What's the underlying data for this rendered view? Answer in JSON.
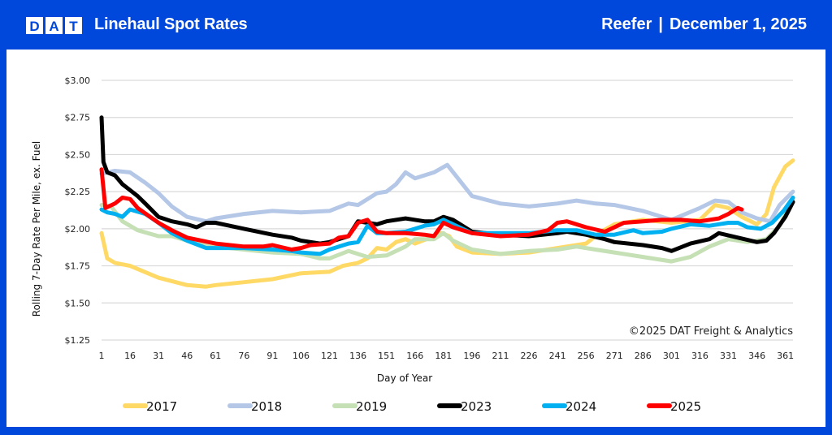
{
  "header": {
    "logo_letters": [
      "D",
      "A",
      "T"
    ],
    "title": "Linehaul Spot Rates",
    "equipment": "Reefer",
    "separator": "|",
    "date": "December 1, 2025"
  },
  "chart_data": {
    "type": "line",
    "title": "Linehaul Spot Rates — Reefer",
    "xlabel": "Day of Year",
    "ylabel": "Rolling 7-Day Rate Per Mile, ex. Fuel",
    "xlim": [
      1,
      365
    ],
    "ylim": [
      1.25,
      3.0
    ],
    "x_ticks": [
      1,
      16,
      31,
      46,
      61,
      76,
      91,
      106,
      121,
      136,
      151,
      166,
      181,
      196,
      211,
      226,
      241,
      256,
      271,
      286,
      301,
      316,
      331,
      346,
      361
    ],
    "y_ticks": [
      1.25,
      1.5,
      1.75,
      2.0,
      2.25,
      2.5,
      2.75,
      3.0
    ],
    "y_tick_labels": [
      "$1.25",
      "$1.50",
      "$1.75",
      "$2.00",
      "$2.25",
      "$2.50",
      "$2.75",
      "$3.00"
    ],
    "grid": "horizontal",
    "legend": "bottom",
    "annotation": "©2025 DAT Freight & Analytics",
    "series": [
      {
        "name": "2017",
        "color": "#ffd966",
        "points": [
          [
            1,
            1.97
          ],
          [
            4,
            1.8
          ],
          [
            8,
            1.77
          ],
          [
            16,
            1.75
          ],
          [
            31,
            1.67
          ],
          [
            46,
            1.62
          ],
          [
            56,
            1.61
          ],
          [
            61,
            1.62
          ],
          [
            76,
            1.64
          ],
          [
            91,
            1.66
          ],
          [
            106,
            1.7
          ],
          [
            121,
            1.71
          ],
          [
            128,
            1.75
          ],
          [
            136,
            1.77
          ],
          [
            141,
            1.8
          ],
          [
            146,
            1.87
          ],
          [
            151,
            1.86
          ],
          [
            156,
            1.91
          ],
          [
            161,
            1.93
          ],
          [
            166,
            1.9
          ],
          [
            172,
            1.93
          ],
          [
            180,
            1.97
          ],
          [
            184,
            1.95
          ],
          [
            188,
            1.88
          ],
          [
            196,
            1.84
          ],
          [
            211,
            1.83
          ],
          [
            226,
            1.84
          ],
          [
            241,
            1.87
          ],
          [
            251,
            1.89
          ],
          [
            256,
            1.9
          ],
          [
            264,
            1.98
          ],
          [
            271,
            2.03
          ],
          [
            286,
            2.06
          ],
          [
            301,
            2.04
          ],
          [
            316,
            2.06
          ],
          [
            324,
            2.16
          ],
          [
            331,
            2.14
          ],
          [
            338,
            2.08
          ],
          [
            346,
            2.03
          ],
          [
            351,
            2.1
          ],
          [
            355,
            2.28
          ],
          [
            361,
            2.42
          ],
          [
            365,
            2.46
          ]
        ]
      },
      {
        "name": "2018",
        "color": "#b4c7e7",
        "points": [
          [
            1,
            2.37
          ],
          [
            8,
            2.39
          ],
          [
            16,
            2.38
          ],
          [
            24,
            2.31
          ],
          [
            31,
            2.24
          ],
          [
            38,
            2.15
          ],
          [
            46,
            2.08
          ],
          [
            56,
            2.05
          ],
          [
            61,
            2.07
          ],
          [
            76,
            2.1
          ],
          [
            91,
            2.12
          ],
          [
            106,
            2.11
          ],
          [
            121,
            2.12
          ],
          [
            131,
            2.17
          ],
          [
            136,
            2.16
          ],
          [
            146,
            2.24
          ],
          [
            151,
            2.25
          ],
          [
            156,
            2.3
          ],
          [
            161,
            2.38
          ],
          [
            166,
            2.34
          ],
          [
            176,
            2.38
          ],
          [
            183,
            2.43
          ],
          [
            188,
            2.35
          ],
          [
            196,
            2.22
          ],
          [
            211,
            2.17
          ],
          [
            226,
            2.15
          ],
          [
            241,
            2.17
          ],
          [
            251,
            2.19
          ],
          [
            261,
            2.17
          ],
          [
            271,
            2.16
          ],
          [
            286,
            2.12
          ],
          [
            301,
            2.06
          ],
          [
            316,
            2.14
          ],
          [
            324,
            2.19
          ],
          [
            331,
            2.18
          ],
          [
            338,
            2.11
          ],
          [
            346,
            2.07
          ],
          [
            353,
            2.05
          ],
          [
            358,
            2.16
          ],
          [
            365,
            2.25
          ]
        ]
      },
      {
        "name": "2019",
        "color": "#c5e0b4",
        "points": [
          [
            1,
            2.16
          ],
          [
            6,
            2.15
          ],
          [
            12,
            2.05
          ],
          [
            20,
            1.99
          ],
          [
            31,
            1.95
          ],
          [
            38,
            1.95
          ],
          [
            46,
            1.92
          ],
          [
            61,
            1.88
          ],
          [
            76,
            1.86
          ],
          [
            91,
            1.84
          ],
          [
            106,
            1.83
          ],
          [
            116,
            1.8
          ],
          [
            121,
            1.8
          ],
          [
            131,
            1.85
          ],
          [
            141,
            1.81
          ],
          [
            151,
            1.82
          ],
          [
            161,
            1.88
          ],
          [
            166,
            1.93
          ],
          [
            176,
            1.93
          ],
          [
            181,
            1.97
          ],
          [
            186,
            1.92
          ],
          [
            196,
            1.86
          ],
          [
            211,
            1.83
          ],
          [
            226,
            1.85
          ],
          [
            241,
            1.86
          ],
          [
            251,
            1.88
          ],
          [
            261,
            1.86
          ],
          [
            271,
            1.84
          ],
          [
            286,
            1.81
          ],
          [
            301,
            1.78
          ],
          [
            311,
            1.81
          ],
          [
            321,
            1.88
          ],
          [
            331,
            1.93
          ],
          [
            341,
            1.91
          ],
          [
            351,
            1.93
          ],
          [
            358,
            2.02
          ],
          [
            365,
            2.2
          ]
        ]
      },
      {
        "name": "2023",
        "color": "#000000",
        "points": [
          [
            1,
            2.75
          ],
          [
            2,
            2.45
          ],
          [
            4,
            2.38
          ],
          [
            8,
            2.36
          ],
          [
            12,
            2.3
          ],
          [
            16,
            2.26
          ],
          [
            20,
            2.22
          ],
          [
            24,
            2.17
          ],
          [
            31,
            2.08
          ],
          [
            38,
            2.05
          ],
          [
            46,
            2.03
          ],
          [
            51,
            2.01
          ],
          [
            56,
            2.04
          ],
          [
            61,
            2.04
          ],
          [
            76,
            2.0
          ],
          [
            91,
            1.96
          ],
          [
            101,
            1.94
          ],
          [
            106,
            1.92
          ],
          [
            116,
            1.9
          ],
          [
            121,
            1.91
          ],
          [
            131,
            1.95
          ],
          [
            136,
            2.05
          ],
          [
            141,
            2.04
          ],
          [
            146,
            2.03
          ],
          [
            151,
            2.05
          ],
          [
            161,
            2.07
          ],
          [
            171,
            2.05
          ],
          [
            176,
            2.05
          ],
          [
            181,
            2.08
          ],
          [
            186,
            2.06
          ],
          [
            196,
            1.98
          ],
          [
            211,
            1.96
          ],
          [
            226,
            1.95
          ],
          [
            241,
            1.97
          ],
          [
            246,
            1.98
          ],
          [
            256,
            1.96
          ],
          [
            266,
            1.93
          ],
          [
            271,
            1.91
          ],
          [
            286,
            1.89
          ],
          [
            296,
            1.87
          ],
          [
            301,
            1.85
          ],
          [
            311,
            1.9
          ],
          [
            321,
            1.93
          ],
          [
            326,
            1.97
          ],
          [
            336,
            1.94
          ],
          [
            346,
            1.91
          ],
          [
            351,
            1.92
          ],
          [
            355,
            1.97
          ],
          [
            361,
            2.08
          ],
          [
            365,
            2.18
          ]
        ]
      },
      {
        "name": "2024",
        "color": "#00b0f0",
        "points": [
          [
            1,
            2.13
          ],
          [
            4,
            2.11
          ],
          [
            8,
            2.1
          ],
          [
            12,
            2.08
          ],
          [
            16,
            2.13
          ],
          [
            24,
            2.1
          ],
          [
            31,
            2.04
          ],
          [
            38,
            1.97
          ],
          [
            46,
            1.92
          ],
          [
            56,
            1.87
          ],
          [
            61,
            1.87
          ],
          [
            76,
            1.87
          ],
          [
            91,
            1.86
          ],
          [
            101,
            1.85
          ],
          [
            106,
            1.84
          ],
          [
            116,
            1.83
          ],
          [
            121,
            1.86
          ],
          [
            131,
            1.9
          ],
          [
            136,
            1.91
          ],
          [
            141,
            2.02
          ],
          [
            146,
            1.97
          ],
          [
            151,
            1.97
          ],
          [
            161,
            1.98
          ],
          [
            171,
            2.02
          ],
          [
            176,
            2.03
          ],
          [
            181,
            2.06
          ],
          [
            191,
            2.0
          ],
          [
            196,
            1.97
          ],
          [
            211,
            1.97
          ],
          [
            226,
            1.97
          ],
          [
            241,
            1.99
          ],
          [
            251,
            1.99
          ],
          [
            261,
            1.96
          ],
          [
            271,
            1.96
          ],
          [
            281,
            1.99
          ],
          [
            286,
            1.97
          ],
          [
            296,
            1.98
          ],
          [
            301,
            2.0
          ],
          [
            311,
            2.03
          ],
          [
            321,
            2.02
          ],
          [
            331,
            2.04
          ],
          [
            336,
            2.04
          ],
          [
            341,
            2.01
          ],
          [
            348,
            2.0
          ],
          [
            354,
            2.04
          ],
          [
            360,
            2.12
          ],
          [
            365,
            2.21
          ]
        ]
      },
      {
        "name": "2025",
        "color": "#ff0000",
        "points": [
          [
            1,
            2.4
          ],
          [
            3,
            2.14
          ],
          [
            8,
            2.17
          ],
          [
            12,
            2.21
          ],
          [
            16,
            2.2
          ],
          [
            20,
            2.14
          ],
          [
            31,
            2.04
          ],
          [
            38,
            1.99
          ],
          [
            46,
            1.94
          ],
          [
            61,
            1.9
          ],
          [
            76,
            1.88
          ],
          [
            86,
            1.88
          ],
          [
            91,
            1.89
          ],
          [
            101,
            1.86
          ],
          [
            106,
            1.87
          ],
          [
            111,
            1.89
          ],
          [
            121,
            1.9
          ],
          [
            126,
            1.94
          ],
          [
            131,
            1.95
          ],
          [
            136,
            2.04
          ],
          [
            141,
            2.06
          ],
          [
            146,
            1.98
          ],
          [
            151,
            1.97
          ],
          [
            161,
            1.97
          ],
          [
            171,
            1.96
          ],
          [
            176,
            1.95
          ],
          [
            181,
            2.04
          ],
          [
            186,
            2.01
          ],
          [
            196,
            1.97
          ],
          [
            211,
            1.95
          ],
          [
            226,
            1.96
          ],
          [
            236,
            1.99
          ],
          [
            241,
            2.04
          ],
          [
            246,
            2.05
          ],
          [
            256,
            2.01
          ],
          [
            266,
            1.98
          ],
          [
            276,
            2.04
          ],
          [
            286,
            2.05
          ],
          [
            296,
            2.06
          ],
          [
            306,
            2.06
          ],
          [
            316,
            2.05
          ],
          [
            326,
            2.07
          ],
          [
            331,
            2.1
          ],
          [
            336,
            2.14
          ],
          [
            338,
            2.13
          ]
        ]
      }
    ]
  }
}
